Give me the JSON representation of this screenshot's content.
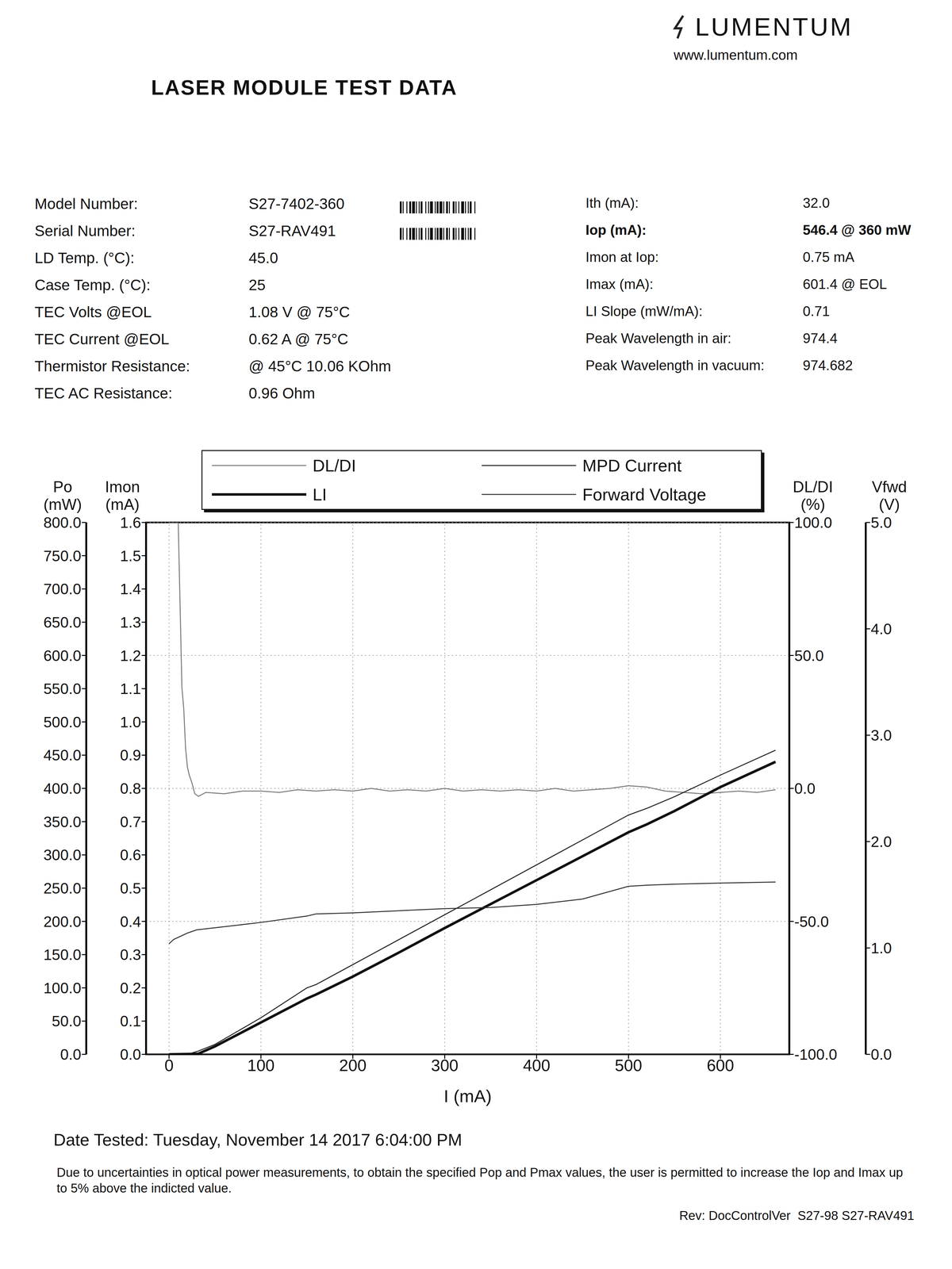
{
  "header": {
    "brand": "LUMENTUM",
    "website": "www.lumentum.com",
    "title": "LASER MODULE TEST DATA"
  },
  "fields_left": [
    {
      "label": "Model Number:",
      "value": "S27-7402-360"
    },
    {
      "label": "Serial Number:",
      "value": "S27-RAV491"
    },
    {
      "label": "LD Temp. (°C):",
      "value": "45.0"
    },
    {
      "label": "Case Temp. (°C):",
      "value": "25"
    },
    {
      "label": "TEC Volts @EOL",
      "value": "1.08 V @ 75°C"
    },
    {
      "label": "TEC Current @EOL",
      "value": "0.62 A @ 75°C"
    },
    {
      "label": "Thermistor Resistance:",
      "value": "@ 45°C 10.06 KOhm"
    },
    {
      "label": "TEC AC Resistance:",
      "value": "0.96 Ohm"
    }
  ],
  "fields_right": [
    {
      "label": "Ith (mA):",
      "value": "32.0"
    },
    {
      "label": "Iop (mA):",
      "value": "546.4 @  360 mW"
    },
    {
      "label": "Imon at Iop:",
      "value": "0.75 mA"
    },
    {
      "label": "Imax (mA):",
      "value": "601.4 @ EOL"
    },
    {
      "label": "LI Slope (mW/mA):",
      "value": "0.71"
    },
    {
      "label": "Peak Wavelength in air:",
      "value": "974.4"
    },
    {
      "label": "Peak Wavelength in vacuum:",
      "value": "974.682"
    }
  ],
  "chart_data": {
    "type": "line",
    "x_label": "I (mA)",
    "xlim": [
      -25,
      675
    ],
    "xticks": [
      0,
      100,
      200,
      300,
      400,
      500,
      600
    ],
    "grid": true,
    "legend": "top",
    "y_axes": [
      {
        "label": "Imon (mA)",
        "ylim": [
          0,
          1.6
        ],
        "yticks": [
          {
            "value": 0,
            "label": "0.0"
          },
          0.1,
          0.2,
          0.3,
          0.4,
          0.5,
          0.6,
          0.7,
          0.8,
          0.9,
          {
            "value": 1,
            "label": "1.0"
          },
          1.1,
          1.2,
          1.3,
          1.4,
          1.5,
          1.6
        ]
      },
      {
        "label": "Po (mW)",
        "ylim": [
          0,
          800
        ],
        "yticks": [
          {
            "value": 0,
            "label": "0.0"
          },
          {
            "value": 50,
            "label": "50.0"
          },
          {
            "value": 100,
            "label": "100.0"
          },
          {
            "value": 150,
            "label": "150.0"
          },
          {
            "value": 200,
            "label": "200.0"
          },
          {
            "value": 250,
            "label": "250.0"
          },
          {
            "value": 300,
            "label": "300.0"
          },
          {
            "value": 350,
            "label": "350.0"
          },
          {
            "value": 400,
            "label": "400.0"
          },
          {
            "value": 450,
            "label": "450.0"
          },
          {
            "value": 500,
            "label": "500.0"
          },
          {
            "value": 550,
            "label": "550.0"
          },
          {
            "value": 600,
            "label": "600.0"
          },
          {
            "value": 650,
            "label": "650.0"
          },
          {
            "value": 700,
            "label": "700.0"
          },
          {
            "value": 750,
            "label": "750.0"
          },
          {
            "value": 800,
            "label": "800.0"
          }
        ]
      },
      {
        "label": "DL/DI (%)",
        "ylim": [
          -100,
          100
        ],
        "yticks": [
          {
            "value": -100,
            "label": "-100.0"
          },
          {
            "value": -50,
            "label": "-50.0"
          },
          {
            "value": 0,
            "label": "0.0"
          },
          {
            "value": 50,
            "label": "50.0"
          },
          {
            "value": 100,
            "label": "100.0"
          }
        ]
      },
      {
        "label": "Vfwd (V)",
        "ylim": [
          0,
          5
        ],
        "yticks": [
          {
            "value": 0,
            "label": "0.0"
          },
          {
            "value": 1,
            "label": "1.0"
          },
          {
            "value": 2,
            "label": "2.0"
          },
          {
            "value": 3,
            "label": "3.0"
          },
          {
            "value": 4,
            "label": "4.0"
          },
          {
            "value": 5,
            "label": "5.0"
          }
        ]
      }
    ],
    "series": [
      {
        "name": "DL/DI",
        "color": "#7a7a7a",
        "axis": "DL/DI (%)",
        "line_style": "solid",
        "x": [
          0,
          5,
          10,
          14,
          16,
          18,
          20,
          22,
          25,
          28,
          32,
          40,
          60,
          80,
          100,
          120,
          140,
          160,
          180,
          200,
          220,
          240,
          260,
          280,
          300,
          320,
          340,
          360,
          380,
          400,
          420,
          440,
          460,
          480,
          500,
          520,
          540,
          560,
          580,
          600,
          620,
          640,
          660
        ],
        "values": [
          100,
          100,
          100,
          38,
          30,
          15,
          8,
          5,
          2,
          -2,
          -3,
          -1.5,
          -2,
          -1,
          -1,
          -1.5,
          -0.5,
          -1,
          -0.5,
          -1,
          0,
          -1,
          -0.5,
          -1,
          0,
          -1,
          -0.5,
          -1,
          -0.5,
          -1,
          0,
          -1,
          -0.5,
          0,
          1,
          0.5,
          -1,
          -1.5,
          -2,
          -1.5,
          -1,
          -1.5,
          -0.5
        ]
      },
      {
        "name": "LI",
        "color": "#111111",
        "axis": "Po (mW)",
        "line_style": "solid",
        "x": [
          0,
          20,
          32,
          50,
          100,
          150,
          160,
          200,
          250,
          300,
          350,
          400,
          450,
          500,
          520,
          550,
          600,
          660
        ],
        "values": [
          0,
          0.5,
          1,
          12,
          48,
          84,
          90,
          117,
          153,
          190,
          226,
          262,
          298,
          334,
          346,
          366,
          402,
          440
        ]
      },
      {
        "name": "MPD Current",
        "color": "#222222",
        "axis": "Imon (mA)",
        "line_style": "solid",
        "x": [
          0,
          20,
          32,
          50,
          100,
          150,
          160,
          200,
          250,
          300,
          350,
          400,
          450,
          500,
          520,
          550,
          600,
          660
        ],
        "values": [
          0,
          0,
          0.01,
          0.03,
          0.11,
          0.2,
          0.21,
          0.27,
          0.345,
          0.42,
          0.495,
          0.57,
          0.645,
          0.72,
          0.74,
          0.775,
          0.84,
          0.915
        ]
      },
      {
        "name": "Forward Voltage",
        "color": "#333333",
        "axis": "Vfwd (V)",
        "line_style": "solid",
        "x": [
          0,
          5,
          10,
          20,
          30,
          50,
          100,
          150,
          160,
          200,
          250,
          300,
          350,
          400,
          450,
          500,
          520,
          550,
          600,
          660
        ],
        "values": [
          1.04,
          1.08,
          1.1,
          1.14,
          1.17,
          1.19,
          1.24,
          1.3,
          1.32,
          1.33,
          1.35,
          1.37,
          1.38,
          1.41,
          1.46,
          1.58,
          1.59,
          1.6,
          1.61,
          1.62
        ]
      }
    ]
  },
  "footer": {
    "date": "Date Tested: Tuesday, November 14 2017 6:04:00 PM",
    "note": "Due to uncertainties in optical power measurements, to obtain the specified Pop and Pmax values, the user is permitted to increase the Iop and Imax up to 5% above the indicted value.",
    "rev": "Rev: DocControlVer  S27-98 S27-RAV491"
  }
}
